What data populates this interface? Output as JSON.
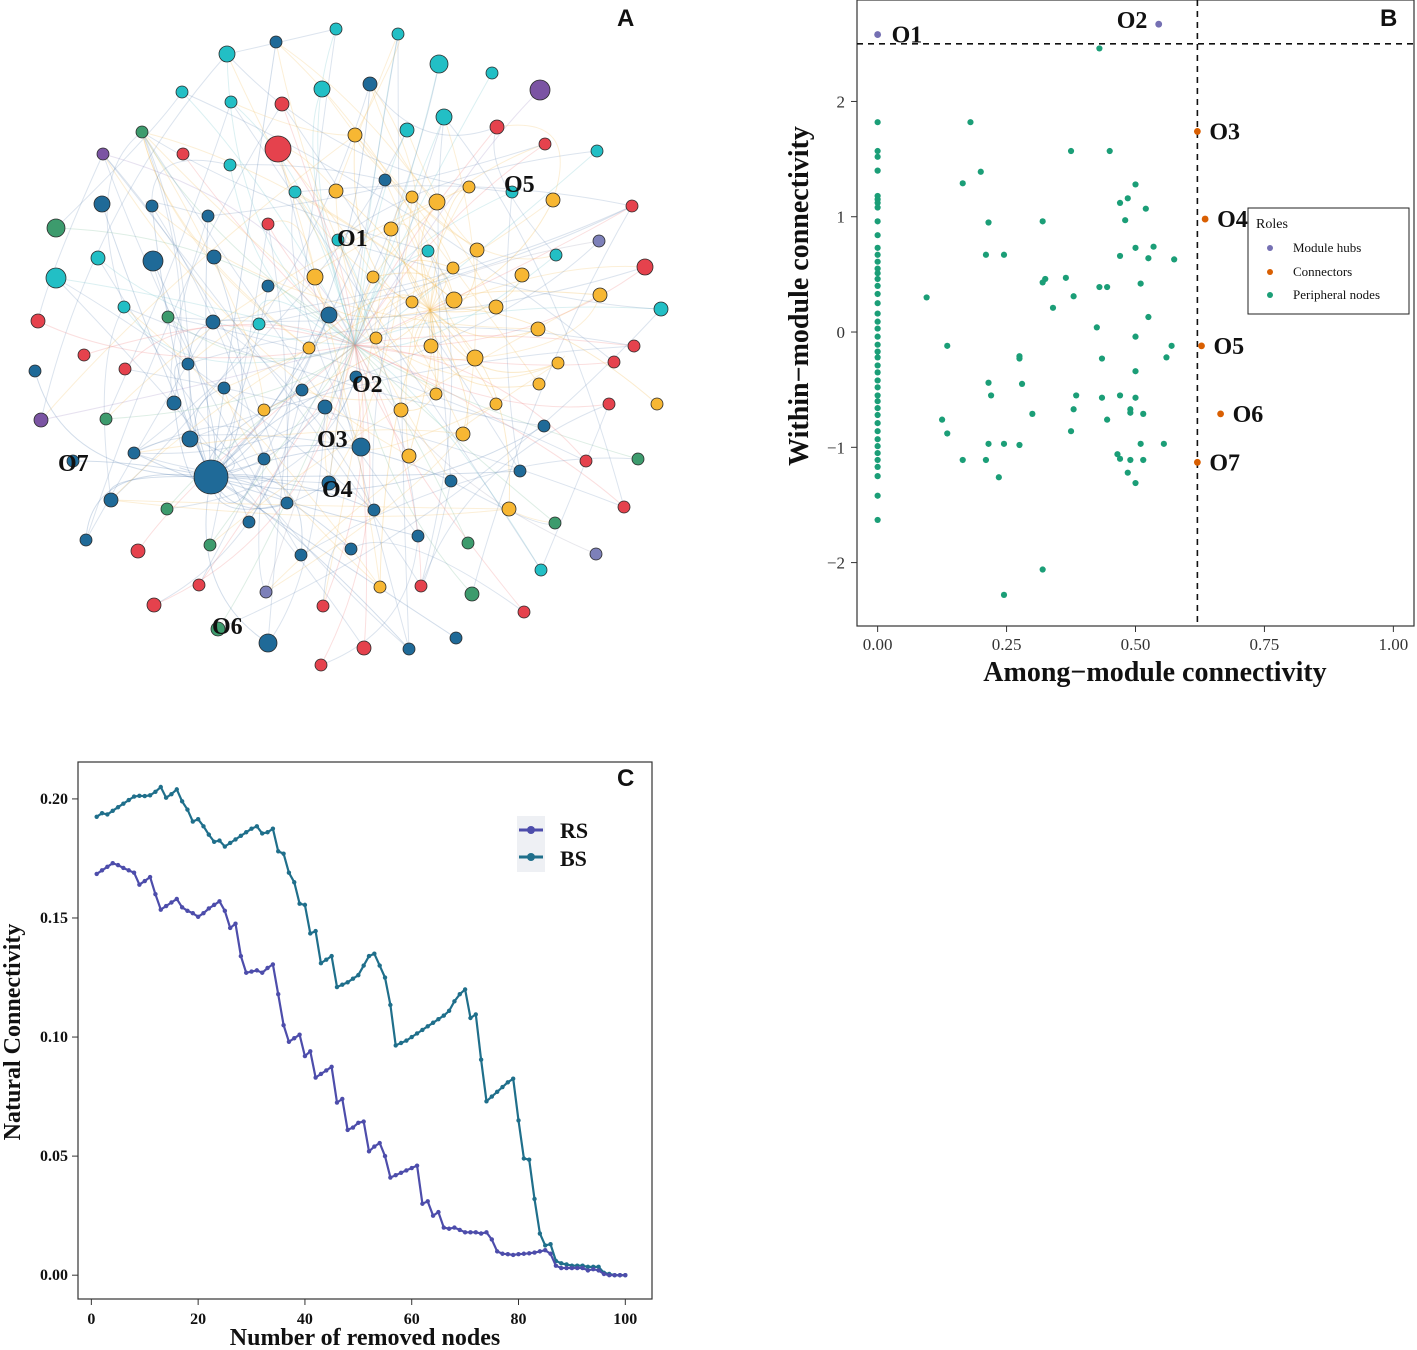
{
  "panels": {
    "a": {
      "letter": "A"
    },
    "b": {
      "letter": "B"
    },
    "c": {
      "letter": "C"
    }
  },
  "network": {
    "module_colors": {
      "blue": "#1f6a98",
      "orange": "#f7b733",
      "cyan": "#22bfc5",
      "red": "#e5424d",
      "green": "#3d9b6d",
      "purple": "#7b54a3",
      "lavender": "#7d80b9"
    },
    "labels": [
      "O1",
      "O2",
      "O3",
      "O4",
      "O5",
      "O6",
      "O7"
    ]
  },
  "chart_data": [
    {
      "type": "scatter",
      "panel": "B",
      "xlabel": "Among−module connectivity",
      "ylabel": "Within−module connectivity",
      "xlim": [
        -0.04,
        1.04
      ],
      "ylim": [
        -2.55,
        2.88
      ],
      "xticks": [
        0.0,
        0.25,
        0.5,
        0.75,
        1.0
      ],
      "xtick_labels": [
        "0.00",
        "0.25",
        "0.50",
        "0.75",
        "1.00"
      ],
      "yticks": [
        -2,
        -1,
        0,
        1,
        2
      ],
      "ytick_labels": [
        "−2",
        "−1",
        "0",
        "1",
        "2"
      ],
      "thresholds": {
        "x": 0.62,
        "y": 2.5
      },
      "legend": {
        "title": "Roles",
        "entries": [
          {
            "label": "Module hubs",
            "color": "#7570b3"
          },
          {
            "label": "Connectors",
            "color": "#d95f02"
          },
          {
            "label": "Peripheral nodes",
            "color": "#1b9e77"
          }
        ]
      },
      "module_hubs": [
        {
          "label": "O1",
          "x": 0.0,
          "y": 2.58
        },
        {
          "label": "O2",
          "x": 0.545,
          "y": 2.67
        }
      ],
      "connectors": [
        {
          "label": "O3",
          "x": 0.62,
          "y": 1.74
        },
        {
          "label": "O4",
          "x": 0.635,
          "y": 0.98
        },
        {
          "label": "O5",
          "x": 0.628,
          "y": -0.12
        },
        {
          "label": "O6",
          "x": 0.665,
          "y": -0.71
        },
        {
          "label": "O7",
          "x": 0.62,
          "y": -1.13
        }
      ],
      "peripheral_nodes": [
        [
          0,
          1.82
        ],
        [
          0,
          1.57
        ],
        [
          0,
          1.52
        ],
        [
          0,
          1.4
        ],
        [
          0,
          1.18
        ],
        [
          0,
          1.15
        ],
        [
          0,
          1.12
        ],
        [
          0,
          1.08
        ],
        [
          0,
          0.96
        ],
        [
          0,
          0.84
        ],
        [
          0,
          0.73
        ],
        [
          0,
          0.67
        ],
        [
          0,
          0.61
        ],
        [
          0,
          0.55
        ],
        [
          0,
          0.51
        ],
        [
          0,
          0.46
        ],
        [
          0,
          0.4
        ],
        [
          0,
          0.33
        ],
        [
          0,
          0.25
        ],
        [
          0,
          0.16
        ],
        [
          0,
          0.09
        ],
        [
          0,
          0.03
        ],
        [
          0,
          -0.04
        ],
        [
          0,
          -0.11
        ],
        [
          0,
          -0.17
        ],
        [
          0,
          -0.22
        ],
        [
          0,
          -0.29
        ],
        [
          0,
          -0.35
        ],
        [
          0,
          -0.42
        ],
        [
          0,
          -0.48
        ],
        [
          0,
          -0.55
        ],
        [
          0,
          -0.6
        ],
        [
          0,
          -0.66
        ],
        [
          0,
          -0.72
        ],
        [
          0,
          -0.79
        ],
        [
          0,
          -0.86
        ],
        [
          0,
          -0.93
        ],
        [
          0,
          -0.99
        ],
        [
          0,
          -1.05
        ],
        [
          0,
          -1.11
        ],
        [
          0,
          -1.17
        ],
        [
          0,
          -1.25
        ],
        [
          0,
          -1.42
        ],
        [
          0,
          -1.63
        ],
        [
          0.43,
          2.46
        ],
        [
          0.18,
          1.82
        ],
        [
          0.2,
          1.39
        ],
        [
          0.165,
          1.29
        ],
        [
          0.375,
          1.57
        ],
        [
          0.45,
          1.57
        ],
        [
          0.5,
          1.28
        ],
        [
          0.485,
          1.16
        ],
        [
          0.47,
          1.12
        ],
        [
          0.52,
          1.07
        ],
        [
          0.48,
          0.97
        ],
        [
          0.215,
          0.95
        ],
        [
          0.32,
          0.96
        ],
        [
          0.5,
          0.73
        ],
        [
          0.535,
          0.74
        ],
        [
          0.525,
          0.64
        ],
        [
          0.47,
          0.66
        ],
        [
          0.575,
          0.63
        ],
        [
          0.21,
          0.67
        ],
        [
          0.245,
          0.67
        ],
        [
          0.095,
          0.3
        ],
        [
          0.365,
          0.47
        ],
        [
          0.325,
          0.46
        ],
        [
          0.32,
          0.43
        ],
        [
          0.43,
          0.39
        ],
        [
          0.445,
          0.39
        ],
        [
          0.51,
          0.42
        ],
        [
          0.38,
          0.31
        ],
        [
          0.34,
          0.21
        ],
        [
          0.425,
          0.04
        ],
        [
          0.5,
          -0.04
        ],
        [
          0.525,
          0.13
        ],
        [
          0.57,
          -0.12
        ],
        [
          0.56,
          -0.22
        ],
        [
          0.135,
          -0.12
        ],
        [
          0.275,
          -0.21
        ],
        [
          0.275,
          -0.23
        ],
        [
          0.435,
          -0.23
        ],
        [
          0.5,
          -0.34
        ],
        [
          0.215,
          -0.44
        ],
        [
          0.28,
          -0.45
        ],
        [
          0.22,
          -0.55
        ],
        [
          0.435,
          -0.57
        ],
        [
          0.47,
          -0.55
        ],
        [
          0.5,
          -0.57
        ],
        [
          0.385,
          -0.55
        ],
        [
          0.38,
          -0.67
        ],
        [
          0.3,
          -0.71
        ],
        [
          0.49,
          -0.67
        ],
        [
          0.49,
          -0.7
        ],
        [
          0.515,
          -0.71
        ],
        [
          0.445,
          -0.76
        ],
        [
          0.125,
          -0.76
        ],
        [
          0.135,
          -0.88
        ],
        [
          0.375,
          -0.86
        ],
        [
          0.215,
          -0.97
        ],
        [
          0.245,
          -0.97
        ],
        [
          0.275,
          -0.98
        ],
        [
          0.51,
          -0.97
        ],
        [
          0.555,
          -0.97
        ],
        [
          0.465,
          -1.06
        ],
        [
          0.47,
          -1.1
        ],
        [
          0.165,
          -1.11
        ],
        [
          0.21,
          -1.11
        ],
        [
          0.49,
          -1.11
        ],
        [
          0.515,
          -1.11
        ],
        [
          0.485,
          -1.22
        ],
        [
          0.235,
          -1.26
        ],
        [
          0.5,
          -1.31
        ],
        [
          0.32,
          -2.06
        ],
        [
          0.245,
          -2.28
        ]
      ]
    },
    {
      "type": "line",
      "panel": "C",
      "xlabel": "Number of removed nodes",
      "ylabel": "Natural Connectivity",
      "xlim": [
        -2.5,
        105
      ],
      "ylim": [
        -0.01,
        0.2155
      ],
      "xticks": [
        0,
        20,
        40,
        60,
        80,
        100
      ],
      "xtick_labels": [
        "0",
        "20",
        "40",
        "60",
        "80",
        "100"
      ],
      "yticks": [
        0.0,
        0.05,
        0.1,
        0.15,
        0.2
      ],
      "ytick_labels": [
        "0.00",
        "0.05",
        "0.10",
        "0.15",
        "0.20"
      ],
      "legend_position": "top-right",
      "series": [
        {
          "name": "RS",
          "color": "#4d4dab",
          "x": [
            1,
            2,
            3,
            4,
            5,
            6,
            7,
            8,
            9,
            10,
            11,
            12,
            13,
            14,
            15,
            16,
            17,
            18,
            19,
            20,
            21,
            22,
            23,
            24,
            25,
            26,
            27,
            28,
            29,
            30,
            31,
            32,
            33,
            34,
            35,
            36,
            37,
            38,
            39,
            40,
            41,
            42,
            43,
            44,
            45,
            46,
            47,
            48,
            49,
            50,
            51,
            52,
            53,
            54,
            55,
            56,
            57,
            58,
            59,
            60,
            61,
            62,
            63,
            64,
            65,
            66,
            67,
            68,
            69,
            70,
            71,
            72,
            73,
            74,
            75,
            76,
            77,
            78,
            79,
            80,
            81,
            82,
            83,
            84,
            85,
            86,
            87,
            88,
            89,
            90,
            91,
            92,
            93,
            94,
            95,
            96,
            97,
            98,
            99,
            100
          ],
          "y": [
            0.1685,
            0.17,
            0.1715,
            0.173,
            0.1722,
            0.171,
            0.17,
            0.169,
            0.164,
            0.1655,
            0.1672,
            0.16,
            0.1535,
            0.155,
            0.1565,
            0.158,
            0.1545,
            0.153,
            0.152,
            0.1505,
            0.152,
            0.154,
            0.1555,
            0.157,
            0.153,
            0.1458,
            0.1476,
            0.134,
            0.127,
            0.1275,
            0.128,
            0.127,
            0.129,
            0.1305,
            0.118,
            0.105,
            0.098,
            0.0995,
            0.101,
            0.092,
            0.094,
            0.083,
            0.0845,
            0.086,
            0.0875,
            0.0725,
            0.074,
            0.061,
            0.062,
            0.064,
            0.0645,
            0.052,
            0.054,
            0.0555,
            0.05,
            0.041,
            0.042,
            0.043,
            0.044,
            0.045,
            0.046,
            0.03,
            0.031,
            0.025,
            0.0265,
            0.02,
            0.0195,
            0.02,
            0.019,
            0.018,
            0.018,
            0.018,
            0.0175,
            0.018,
            0.015,
            0.01,
            0.009,
            0.0088,
            0.0085,
            0.0088,
            0.009,
            0.0092,
            0.0095,
            0.01,
            0.0105,
            0.009,
            0.004,
            0.003,
            0.003,
            0.003,
            0.003,
            0.003,
            0.002,
            0.0025,
            0.002,
            0.0005,
            0.0,
            0.0,
            0.0,
            0.0
          ]
        },
        {
          "name": "BS",
          "color": "#1f6f8b",
          "x": [
            1,
            2,
            3,
            4,
            5,
            6,
            7,
            8,
            9,
            10,
            11,
            12,
            13,
            14,
            15,
            16,
            17,
            18,
            19,
            20,
            21,
            22,
            23,
            24,
            25,
            26,
            27,
            28,
            29,
            30,
            31,
            32,
            33,
            34,
            35,
            36,
            37,
            38,
            39,
            40,
            41,
            42,
            43,
            44,
            45,
            46,
            47,
            48,
            49,
            50,
            51,
            52,
            53,
            54,
            55,
            56,
            57,
            58,
            59,
            60,
            61,
            62,
            63,
            64,
            65,
            66,
            67,
            68,
            69,
            70,
            71,
            72,
            73,
            74,
            75,
            76,
            77,
            78,
            79,
            80,
            81,
            82,
            83,
            84,
            85,
            86,
            87,
            88,
            89,
            90,
            91,
            92,
            93,
            94,
            95,
            96,
            97,
            98,
            99,
            100
          ],
          "y": [
            0.1925,
            0.194,
            0.1935,
            0.195,
            0.1965,
            0.198,
            0.1995,
            0.201,
            0.2013,
            0.2012,
            0.2015,
            0.203,
            0.205,
            0.2005,
            0.202,
            0.204,
            0.199,
            0.1955,
            0.1905,
            0.1915,
            0.1885,
            0.185,
            0.182,
            0.1825,
            0.18,
            0.1815,
            0.183,
            0.1845,
            0.186,
            0.1875,
            0.1885,
            0.1855,
            0.186,
            0.1875,
            0.178,
            0.177,
            0.169,
            0.165,
            0.156,
            0.1555,
            0.1435,
            0.1445,
            0.131,
            0.1325,
            0.134,
            0.121,
            0.122,
            0.123,
            0.1245,
            0.126,
            0.13,
            0.134,
            0.135,
            0.13,
            0.125,
            0.1135,
            0.0965,
            0.0975,
            0.0985,
            0.1,
            0.1015,
            0.103,
            0.1045,
            0.106,
            0.1075,
            0.109,
            0.111,
            0.115,
            0.118,
            0.12,
            0.108,
            0.1095,
            0.0905,
            0.073,
            0.075,
            0.077,
            0.079,
            0.081,
            0.0825,
            0.065,
            0.049,
            0.0485,
            0.032,
            0.0175,
            0.0125,
            0.013,
            0.006,
            0.005,
            0.0045,
            0.004,
            0.004,
            0.004,
            0.0035,
            0.0035,
            0.0035,
            0.001,
            0.0005,
            0.0,
            0.0,
            0.0
          ]
        }
      ]
    }
  ]
}
